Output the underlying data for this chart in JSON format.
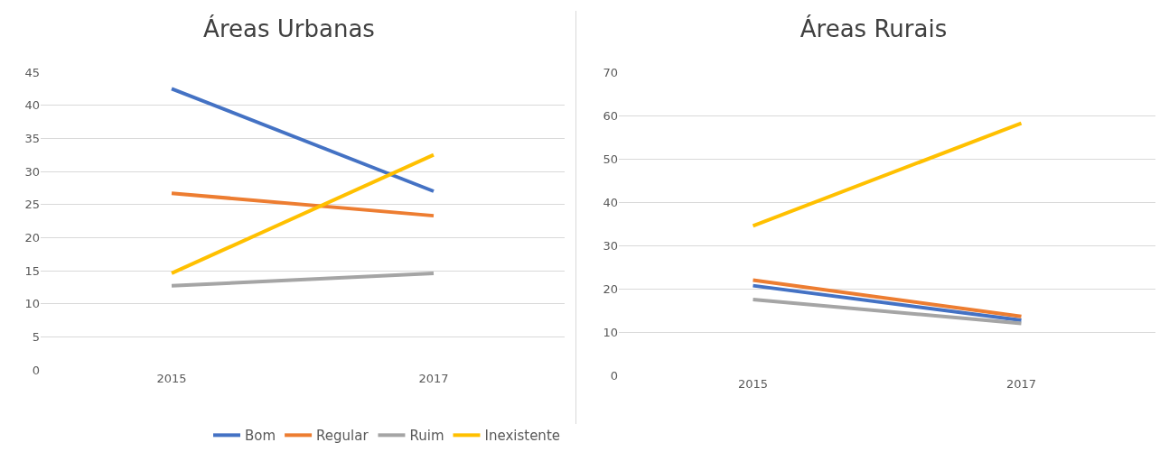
{
  "chart_data": [
    {
      "type": "line",
      "title": "Áreas Urbanas",
      "categories": [
        "2015",
        "2017"
      ],
      "series": [
        {
          "name": "Bom",
          "color": "#4472c4",
          "values": [
            42.5,
            27
          ]
        },
        {
          "name": "Regular",
          "color": "#ed7d31",
          "values": [
            26.7,
            23.3
          ]
        },
        {
          "name": "Ruim",
          "color": "#a5a5a5",
          "values": [
            12.7,
            14.6
          ]
        },
        {
          "name": "Inexistente",
          "color": "#ffc000",
          "values": [
            14.6,
            32.5
          ]
        }
      ],
      "ylim": [
        0,
        45
      ],
      "yticks": [
        0,
        5,
        10,
        15,
        20,
        25,
        30,
        35,
        40,
        45
      ],
      "grid": "y",
      "legend": "bottom",
      "marker": "none",
      "line_style": "solid"
    },
    {
      "type": "line",
      "title": "Áreas Rurais",
      "categories": [
        "2015",
        "2017"
      ],
      "series": [
        {
          "color": "#4472c4",
          "values": [
            20.7,
            12.7
          ]
        },
        {
          "color": "#ed7d31",
          "values": [
            22,
            13.6
          ]
        },
        {
          "color": "#a5a5a5",
          "values": [
            17.5,
            12
          ]
        },
        {
          "color": "#ffc000",
          "values": [
            34.5,
            58.2
          ]
        }
      ],
      "ylim": [
        0,
        70
      ],
      "yticks": [
        0,
        10,
        20,
        30,
        40,
        50,
        60,
        70
      ],
      "grid": "y",
      "legend": false,
      "marker": "none",
      "line_style": "solid"
    }
  ]
}
